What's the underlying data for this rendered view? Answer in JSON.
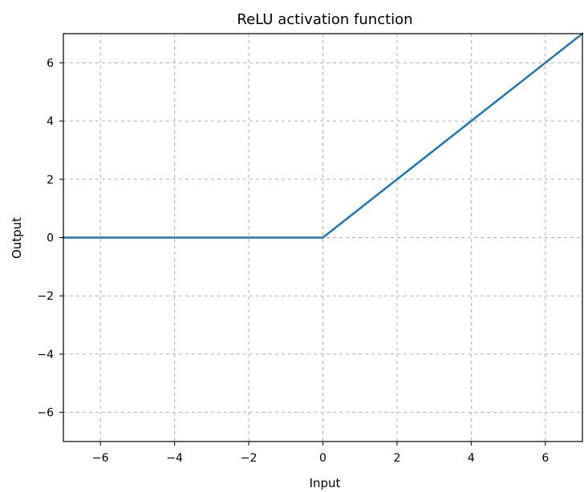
{
  "chart_data": {
    "type": "line",
    "title": "ReLU activation function",
    "xlabel": "Input",
    "ylabel": "Output",
    "xlim": [
      -7,
      7
    ],
    "ylim": [
      -7,
      7
    ],
    "grid": true,
    "grid_style": "dashed",
    "xticks": [
      -6,
      -4,
      -2,
      0,
      2,
      4,
      6
    ],
    "yticks": [
      -6,
      -4,
      -2,
      0,
      2,
      4,
      6
    ],
    "series": [
      {
        "color": "#1f77b4",
        "x": [
          -7,
          0,
          7
        ],
        "y": [
          0,
          0,
          7
        ]
      }
    ]
  },
  "colors": {
    "line": "#1f77b4",
    "grid": "#b0b0b0",
    "axes": "#000000"
  }
}
